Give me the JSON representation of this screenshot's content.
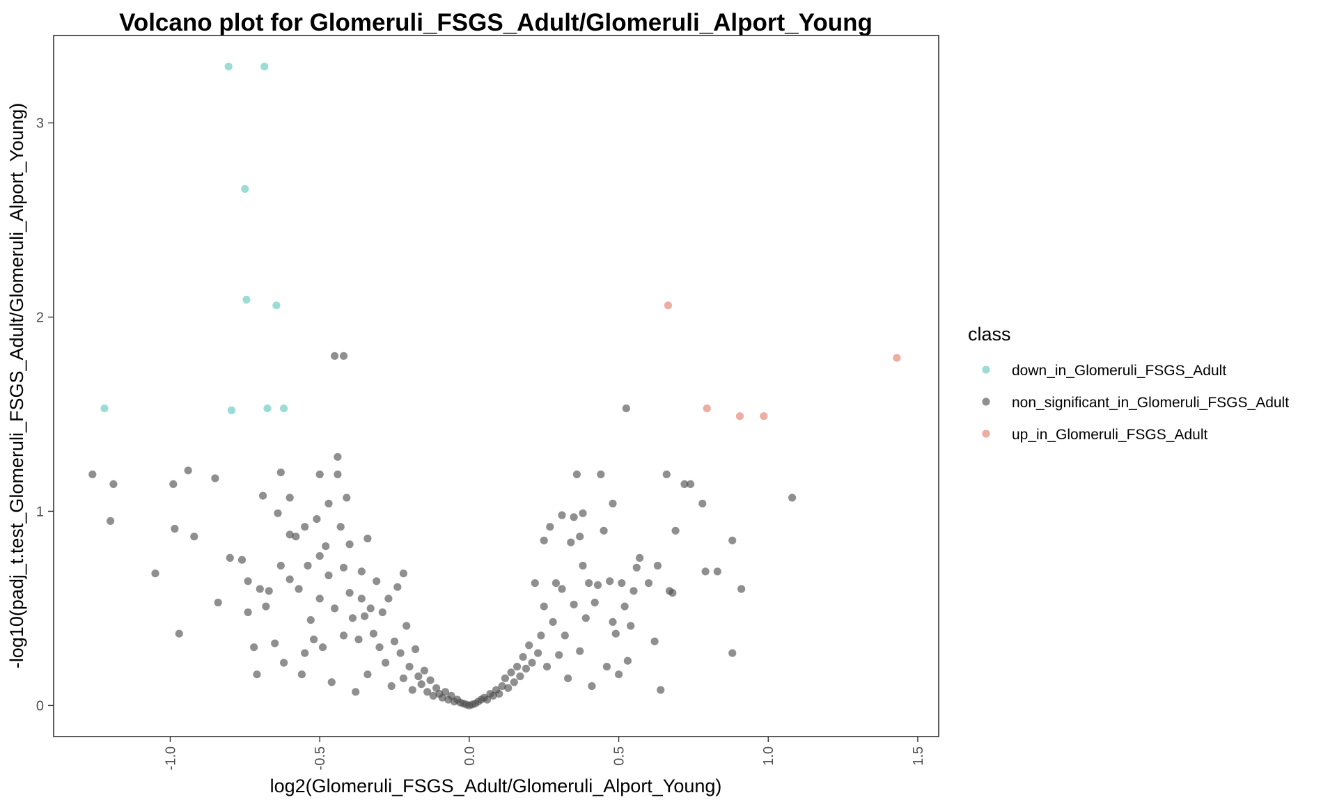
{
  "chart_data": {
    "type": "scatter",
    "title": "Volcano plot for Glomeruli_FSGS_Adult/Glomeruli_Alport_Young",
    "xlabel": "log2(Glomeruli_FSGS_Adult/Glomeruli_Alport_Young)",
    "ylabel": "-log10(padj_t.test_Glomeruli_FSGS_Adult/Glomeruli_Alport_Young)",
    "xlim": [
      -1.39,
      1.57
    ],
    "ylim": [
      -0.16,
      3.45
    ],
    "x_ticks": [
      -1.0,
      -0.5,
      0.0,
      0.5,
      1.0,
      1.5
    ],
    "x_tick_labels": [
      "-1.0",
      "-0.5",
      "0.0",
      "0.5",
      "1.0",
      "1.5"
    ],
    "y_ticks": [
      0,
      1,
      2,
      3
    ],
    "y_tick_labels": [
      "0",
      "1",
      "2",
      "3"
    ],
    "grid": false,
    "legend": {
      "title": "class",
      "placement": "right",
      "entries": [
        {
          "label": "down_in_Glomeruli_FSGS_Adult",
          "color": "#5ec7bd"
        },
        {
          "label": "non_significant_in_Glomeruli_FSGS_Adult",
          "color": "#4a4a4a"
        },
        {
          "label": "up_in_Glomeruli_FSGS_Adult",
          "color": "#e07a6a"
        }
      ]
    },
    "series": [
      {
        "name": "down_in_Glomeruli_FSGS_Adult",
        "color": "#5ec7bd",
        "points": [
          [
            -0.805,
            3.29
          ],
          [
            -0.685,
            3.29
          ],
          [
            -0.75,
            2.66
          ],
          [
            -0.745,
            2.09
          ],
          [
            -0.645,
            2.06
          ],
          [
            -1.22,
            1.53
          ],
          [
            -0.795,
            1.52
          ],
          [
            -0.675,
            1.53
          ],
          [
            -0.62,
            1.53
          ]
        ]
      },
      {
        "name": "non_significant_in_Glomeruli_FSGS_Adult",
        "color": "#4a4a4a",
        "points": [
          [
            -1.26,
            1.19
          ],
          [
            -1.19,
            1.14
          ],
          [
            -1.2,
            0.95
          ],
          [
            -1.05,
            0.68
          ],
          [
            -0.99,
            1.14
          ],
          [
            -0.985,
            0.91
          ],
          [
            -0.97,
            0.37
          ],
          [
            -0.94,
            1.21
          ],
          [
            -0.92,
            0.87
          ],
          [
            -0.85,
            1.17
          ],
          [
            -0.84,
            0.53
          ],
          [
            -0.8,
            0.76
          ],
          [
            -0.76,
            0.75
          ],
          [
            -0.74,
            0.64
          ],
          [
            -0.74,
            0.48
          ],
          [
            -0.72,
            0.3
          ],
          [
            -0.71,
            0.16
          ],
          [
            -0.7,
            0.6
          ],
          [
            -0.69,
            1.08
          ],
          [
            -0.68,
            0.51
          ],
          [
            -0.67,
            0.59
          ],
          [
            -0.65,
            0.32
          ],
          [
            -0.64,
            0.99
          ],
          [
            -0.63,
            1.2
          ],
          [
            -0.63,
            0.72
          ],
          [
            -0.62,
            0.22
          ],
          [
            -0.6,
            1.07
          ],
          [
            -0.6,
            0.88
          ],
          [
            -0.6,
            0.65
          ],
          [
            -0.58,
            0.87
          ],
          [
            -0.57,
            0.6
          ],
          [
            -0.56,
            0.16
          ],
          [
            -0.55,
            0.92
          ],
          [
            -0.55,
            0.27
          ],
          [
            -0.54,
            0.72
          ],
          [
            -0.53,
            0.44
          ],
          [
            -0.52,
            0.34
          ],
          [
            -0.51,
            0.96
          ],
          [
            -0.5,
            0.77
          ],
          [
            -0.5,
            0.55
          ],
          [
            -0.5,
            1.19
          ],
          [
            -0.49,
            0.3
          ],
          [
            -0.48,
            0.82
          ],
          [
            -0.47,
            1.04
          ],
          [
            -0.47,
            0.67
          ],
          [
            -0.46,
            0.12
          ],
          [
            -0.45,
            0.5
          ],
          [
            -0.45,
            1.8
          ],
          [
            -0.44,
            1.28
          ],
          [
            -0.44,
            1.19
          ],
          [
            -0.43,
            0.92
          ],
          [
            -0.42,
            1.8
          ],
          [
            -0.42,
            0.71
          ],
          [
            -0.42,
            0.36
          ],
          [
            -0.41,
            1.07
          ],
          [
            -0.4,
            0.83
          ],
          [
            -0.4,
            0.58
          ],
          [
            -0.39,
            0.45
          ],
          [
            -0.38,
            0.07
          ],
          [
            -0.37,
            0.34
          ],
          [
            -0.36,
            0.69
          ],
          [
            -0.36,
            0.55
          ],
          [
            -0.35,
            0.46
          ],
          [
            -0.34,
            0.86
          ],
          [
            -0.34,
            0.16
          ],
          [
            -0.33,
            0.5
          ],
          [
            -0.32,
            0.37
          ],
          [
            -0.31,
            0.64
          ],
          [
            -0.3,
            0.3
          ],
          [
            -0.29,
            0.48
          ],
          [
            -0.28,
            0.22
          ],
          [
            -0.27,
            0.55
          ],
          [
            -0.26,
            0.1
          ],
          [
            -0.25,
            0.33
          ],
          [
            -0.24,
            0.61
          ],
          [
            -0.23,
            0.27
          ],
          [
            -0.22,
            0.14
          ],
          [
            -0.22,
            0.68
          ],
          [
            -0.21,
            0.41
          ],
          [
            -0.2,
            0.2
          ],
          [
            -0.19,
            0.08
          ],
          [
            -0.18,
            0.29
          ],
          [
            -0.17,
            0.15
          ],
          [
            -0.16,
            0.11
          ],
          [
            -0.15,
            0.18
          ],
          [
            -0.14,
            0.07
          ],
          [
            -0.13,
            0.13
          ],
          [
            -0.12,
            0.05
          ],
          [
            -0.11,
            0.09
          ],
          [
            -0.1,
            0.06
          ],
          [
            -0.09,
            0.04
          ],
          [
            -0.08,
            0.07
          ],
          [
            -0.07,
            0.03
          ],
          [
            -0.06,
            0.05
          ],
          [
            -0.05,
            0.02
          ],
          [
            -0.04,
            0.03
          ],
          [
            -0.03,
            0.015
          ],
          [
            -0.02,
            0.01
          ],
          [
            -0.01,
            0.005
          ],
          [
            0.0,
            0.0
          ],
          [
            0.01,
            0.005
          ],
          [
            0.02,
            0.01
          ],
          [
            0.03,
            0.02
          ],
          [
            0.04,
            0.03
          ],
          [
            0.05,
            0.04
          ],
          [
            0.06,
            0.03
          ],
          [
            0.07,
            0.06
          ],
          [
            0.08,
            0.05
          ],
          [
            0.09,
            0.08
          ],
          [
            0.1,
            0.06
          ],
          [
            0.11,
            0.1
          ],
          [
            0.12,
            0.14
          ],
          [
            0.13,
            0.09
          ],
          [
            0.14,
            0.17
          ],
          [
            0.15,
            0.12
          ],
          [
            0.16,
            0.2
          ],
          [
            0.17,
            0.15
          ],
          [
            0.18,
            0.25
          ],
          [
            0.19,
            0.19
          ],
          [
            0.2,
            0.31
          ],
          [
            0.21,
            0.22
          ],
          [
            0.22,
            0.63
          ],
          [
            0.23,
            0.27
          ],
          [
            0.24,
            0.36
          ],
          [
            0.25,
            0.85
          ],
          [
            0.25,
            0.51
          ],
          [
            0.26,
            0.2
          ],
          [
            0.27,
            0.92
          ],
          [
            0.28,
            0.43
          ],
          [
            0.29,
            0.63
          ],
          [
            0.3,
            0.26
          ],
          [
            0.31,
            0.98
          ],
          [
            0.31,
            0.6
          ],
          [
            0.32,
            0.36
          ],
          [
            0.33,
            0.14
          ],
          [
            0.34,
            0.84
          ],
          [
            0.35,
            0.97
          ],
          [
            0.35,
            0.52
          ],
          [
            0.36,
            1.19
          ],
          [
            0.37,
            0.87
          ],
          [
            0.37,
            0.28
          ],
          [
            0.38,
            0.72
          ],
          [
            0.38,
            0.99
          ],
          [
            0.39,
            0.45
          ],
          [
            0.4,
            0.63
          ],
          [
            0.41,
            0.1
          ],
          [
            0.42,
            0.53
          ],
          [
            0.43,
            0.62
          ],
          [
            0.44,
            1.19
          ],
          [
            0.45,
            0.9
          ],
          [
            0.46,
            0.2
          ],
          [
            0.47,
            0.64
          ],
          [
            0.48,
            1.04
          ],
          [
            0.48,
            0.43
          ],
          [
            0.49,
            0.37
          ],
          [
            0.5,
            0.16
          ],
          [
            0.51,
            0.63
          ],
          [
            0.52,
            0.51
          ],
          [
            0.525,
            1.53
          ],
          [
            0.53,
            0.23
          ],
          [
            0.54,
            0.41
          ],
          [
            0.55,
            0.59
          ],
          [
            0.56,
            0.71
          ],
          [
            0.57,
            0.76
          ],
          [
            0.6,
            0.63
          ],
          [
            0.62,
            0.33
          ],
          [
            0.63,
            0.72
          ],
          [
            0.64,
            0.08
          ],
          [
            0.66,
            1.19
          ],
          [
            0.67,
            0.59
          ],
          [
            0.68,
            0.58
          ],
          [
            0.69,
            0.9
          ],
          [
            0.72,
            1.14
          ],
          [
            0.74,
            1.14
          ],
          [
            0.78,
            1.04
          ],
          [
            0.79,
            0.69
          ],
          [
            0.83,
            0.69
          ],
          [
            0.88,
            0.85
          ],
          [
            0.88,
            0.27
          ],
          [
            0.91,
            0.6
          ],
          [
            1.08,
            1.07
          ]
        ]
      },
      {
        "name": "up_in_Glomeruli_FSGS_Adult",
        "color": "#e07a6a",
        "points": [
          [
            0.665,
            2.06
          ],
          [
            0.795,
            1.53
          ],
          [
            0.905,
            1.49
          ],
          [
            0.985,
            1.49
          ],
          [
            1.43,
            1.79
          ]
        ]
      }
    ]
  }
}
